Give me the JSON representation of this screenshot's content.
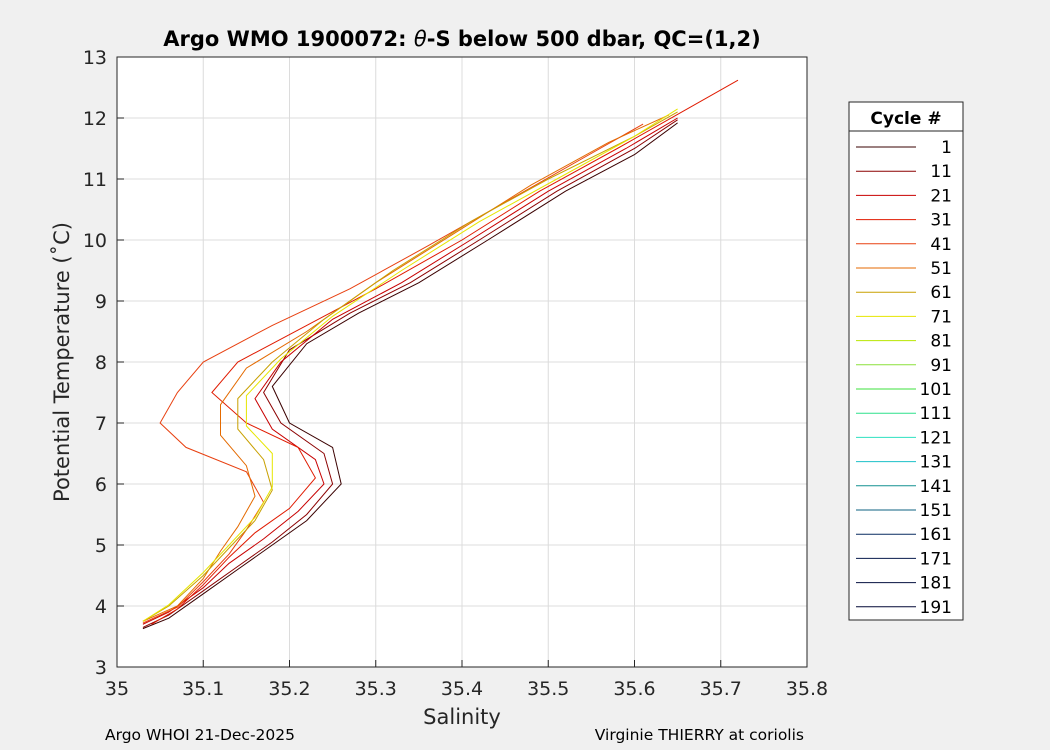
{
  "chart_data": {
    "type": "line",
    "title_main": "Argo WMO 1900072: ",
    "title_symbol": "θ",
    "title_rest": "-S below 500 dbar,  QC=(1,2)",
    "xlabel": "Salinity",
    "ylabel": "Potential Temperature (˚C)",
    "xlim": [
      35,
      35.8
    ],
    "ylim": [
      3,
      13
    ],
    "xticks": [
      "35",
      "35.1",
      "35.2",
      "35.3",
      "35.4",
      "35.5",
      "35.6",
      "35.7",
      "35.8"
    ],
    "yticks": [
      "3",
      "4",
      "5",
      "6",
      "7",
      "8",
      "9",
      "10",
      "11",
      "12",
      "13"
    ],
    "grid": true,
    "legend_title": "Cycle #",
    "legend_placement": "right-outside",
    "legend": [
      {
        "label": "1",
        "color": "#3a0000"
      },
      {
        "label": "11",
        "color": "#8c0000"
      },
      {
        "label": "21",
        "color": "#c80000"
      },
      {
        "label": "31",
        "color": "#e01a00"
      },
      {
        "label": "41",
        "color": "#e84010"
      },
      {
        "label": "51",
        "color": "#e46a00"
      },
      {
        "label": "61",
        "color": "#c8a000"
      },
      {
        "label": "71",
        "color": "#e6e600"
      },
      {
        "label": "81",
        "color": "#b8e600"
      },
      {
        "label": "91",
        "color": "#8ce03a"
      },
      {
        "label": "101",
        "color": "#3ce03c"
      },
      {
        "label": "111",
        "color": "#2ee08c"
      },
      {
        "label": "121",
        "color": "#2ee0c0"
      },
      {
        "label": "131",
        "color": "#1cc0c8"
      },
      {
        "label": "141",
        "color": "#129090"
      },
      {
        "label": "151",
        "color": "#0c6080"
      },
      {
        "label": "161",
        "color": "#082c60"
      },
      {
        "label": "171",
        "color": "#061a4c"
      },
      {
        "label": "181",
        "color": "#041040"
      },
      {
        "label": "191",
        "color": "#020836"
      }
    ],
    "series": [
      {
        "color": "#3a0000",
        "points": [
          [
            35.03,
            3.63
          ],
          [
            35.06,
            3.8
          ],
          [
            35.1,
            4.2
          ],
          [
            35.14,
            4.6
          ],
          [
            35.18,
            5.0
          ],
          [
            35.22,
            5.4
          ],
          [
            35.26,
            6.0
          ],
          [
            35.25,
            6.6
          ],
          [
            35.2,
            7.0
          ],
          [
            35.18,
            7.6
          ],
          [
            35.22,
            8.3
          ],
          [
            35.28,
            8.8
          ],
          [
            35.35,
            9.3
          ],
          [
            35.43,
            10.0
          ],
          [
            35.52,
            10.8
          ],
          [
            35.6,
            11.4
          ],
          [
            35.65,
            11.92
          ]
        ]
      },
      {
        "color": "#8c0000",
        "points": [
          [
            35.03,
            3.65
          ],
          [
            35.06,
            3.85
          ],
          [
            35.1,
            4.25
          ],
          [
            35.14,
            4.65
          ],
          [
            35.18,
            5.05
          ],
          [
            35.22,
            5.5
          ],
          [
            35.25,
            6.0
          ],
          [
            35.24,
            6.5
          ],
          [
            35.19,
            7.0
          ],
          [
            35.17,
            7.5
          ],
          [
            35.2,
            8.2
          ],
          [
            35.27,
            8.8
          ],
          [
            35.34,
            9.3
          ],
          [
            35.42,
            10.0
          ],
          [
            35.51,
            10.8
          ],
          [
            35.6,
            11.5
          ],
          [
            35.65,
            11.97
          ]
        ]
      },
      {
        "color": "#c80000",
        "points": [
          [
            35.03,
            3.7
          ],
          [
            35.06,
            3.9
          ],
          [
            35.1,
            4.3
          ],
          [
            35.13,
            4.7
          ],
          [
            35.17,
            5.1
          ],
          [
            35.21,
            5.55
          ],
          [
            35.24,
            6.0
          ],
          [
            35.23,
            6.4
          ],
          [
            35.18,
            6.9
          ],
          [
            35.16,
            7.4
          ],
          [
            35.19,
            8.0
          ],
          [
            35.25,
            8.7
          ],
          [
            35.33,
            9.3
          ],
          [
            35.41,
            10.0
          ],
          [
            35.5,
            10.8
          ],
          [
            35.59,
            11.5
          ],
          [
            35.65,
            12.0
          ]
        ]
      },
      {
        "color": "#e01a00",
        "points": [
          [
            35.04,
            3.7
          ],
          [
            35.07,
            3.95
          ],
          [
            35.1,
            4.35
          ],
          [
            35.13,
            4.8
          ],
          [
            35.16,
            5.2
          ],
          [
            35.2,
            5.6
          ],
          [
            35.23,
            6.1
          ],
          [
            35.21,
            6.6
          ],
          [
            35.15,
            7.0
          ],
          [
            35.11,
            7.5
          ],
          [
            35.14,
            8.0
          ],
          [
            35.22,
            8.6
          ],
          [
            35.3,
            9.2
          ],
          [
            35.4,
            10.0
          ],
          [
            35.49,
            10.8
          ],
          [
            35.58,
            11.5
          ],
          [
            35.72,
            12.62
          ]
        ]
      },
      {
        "color": "#e84010",
        "points": [
          [
            35.03,
            3.72
          ],
          [
            35.07,
            3.98
          ],
          [
            35.1,
            4.4
          ],
          [
            35.13,
            4.85
          ],
          [
            35.15,
            5.25
          ],
          [
            35.17,
            5.7
          ],
          [
            35.15,
            6.2
          ],
          [
            35.08,
            6.6
          ],
          [
            35.05,
            7.0
          ],
          [
            35.07,
            7.5
          ],
          [
            35.1,
            8.0
          ],
          [
            35.18,
            8.6
          ],
          [
            35.27,
            9.2
          ],
          [
            35.36,
            9.9
          ],
          [
            35.46,
            10.7
          ],
          [
            35.56,
            11.5
          ],
          [
            35.61,
            11.9
          ]
        ]
      },
      {
        "color": "#e46a00",
        "points": [
          [
            35.03,
            3.75
          ],
          [
            35.07,
            4.0
          ],
          [
            35.1,
            4.45
          ],
          [
            35.12,
            4.9
          ],
          [
            35.14,
            5.3
          ],
          [
            35.16,
            5.8
          ],
          [
            35.15,
            6.3
          ],
          [
            35.12,
            6.8
          ],
          [
            35.12,
            7.3
          ],
          [
            35.15,
            7.9
          ],
          [
            35.22,
            8.5
          ],
          [
            35.3,
            9.3
          ],
          [
            35.39,
            10.1
          ],
          [
            35.48,
            10.9
          ],
          [
            35.57,
            11.6
          ],
          [
            35.64,
            12.05
          ]
        ]
      },
      {
        "color": "#c8a000",
        "points": [
          [
            35.03,
            3.75
          ],
          [
            35.06,
            4.0
          ],
          [
            35.1,
            4.5
          ],
          [
            35.13,
            4.95
          ],
          [
            35.16,
            5.4
          ],
          [
            35.18,
            5.9
          ],
          [
            35.17,
            6.4
          ],
          [
            35.14,
            6.9
          ],
          [
            35.14,
            7.4
          ],
          [
            35.18,
            8.0
          ],
          [
            35.24,
            8.7
          ],
          [
            35.32,
            9.5
          ],
          [
            35.41,
            10.3
          ],
          [
            35.5,
            11.0
          ],
          [
            35.6,
            11.7
          ],
          [
            35.65,
            12.1
          ]
        ]
      },
      {
        "color": "#e6e600",
        "points": [
          [
            35.03,
            3.75
          ],
          [
            35.06,
            4.02
          ],
          [
            35.1,
            4.55
          ],
          [
            35.13,
            5.0
          ],
          [
            35.16,
            5.45
          ],
          [
            35.18,
            5.95
          ],
          [
            35.18,
            6.5
          ],
          [
            35.15,
            6.95
          ],
          [
            35.15,
            7.45
          ],
          [
            35.19,
            8.05
          ],
          [
            35.25,
            8.75
          ],
          [
            35.33,
            9.5
          ],
          [
            35.42,
            10.3
          ],
          [
            35.51,
            11.0
          ],
          [
            35.6,
            11.7
          ],
          [
            35.65,
            12.15
          ]
        ]
      }
    ]
  },
  "footer": {
    "left": "Argo WHOI 21-Dec-2025",
    "right": "Virginie THIERRY at coriolis"
  }
}
